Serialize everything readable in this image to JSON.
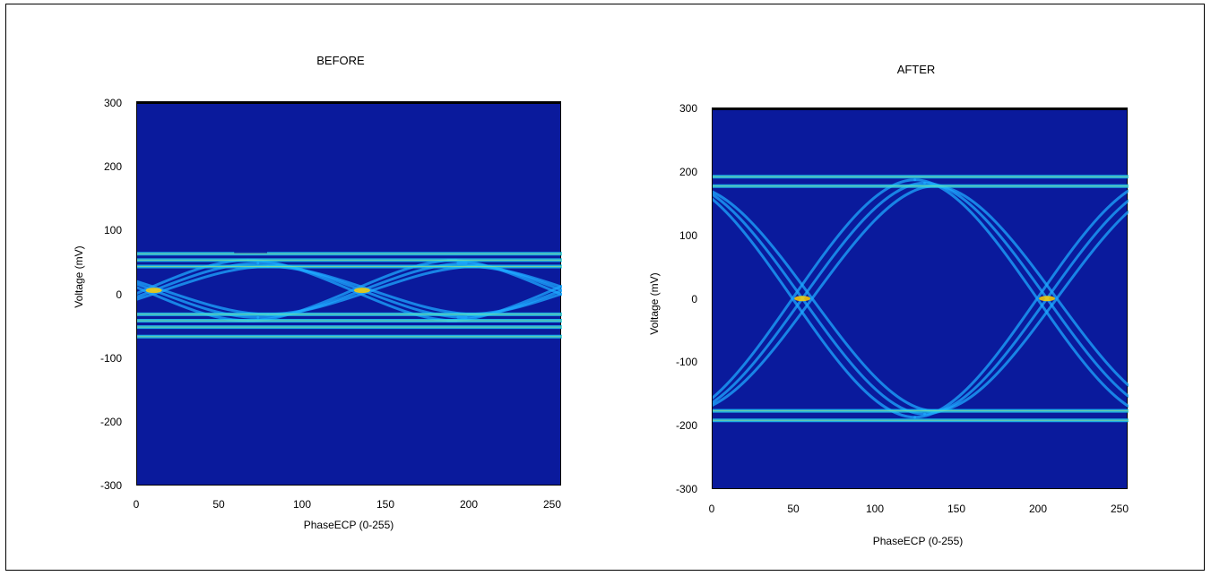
{
  "chart_data": [
    {
      "type": "heatmap",
      "title": "BEFORE",
      "xlabel": "PhaseECP (0-255)",
      "ylabel": "Voltage (mV)",
      "xlim": [
        0,
        255
      ],
      "ylim": [
        -300,
        300
      ],
      "xticks": [
        "0",
        "50",
        "100",
        "150",
        "200",
        "250"
      ],
      "yticks": [
        "300",
        "200",
        "100",
        "0",
        "-100",
        "-200",
        "-300"
      ],
      "levels": [
        55,
        -40
      ],
      "crossings": [
        10,
        135,
        255
      ],
      "gap_x": [
        55,
        78
      ],
      "traces": [
        {
          "kind": "flat",
          "y": 65
        },
        {
          "kind": "flat",
          "y": 55
        },
        {
          "kind": "flat",
          "y": 45
        },
        {
          "kind": "flat",
          "y": -30
        },
        {
          "kind": "flat",
          "y": -40
        },
        {
          "kind": "flat",
          "y": -50
        },
        {
          "kind": "flat",
          "y": -65
        }
      ]
    },
    {
      "type": "heatmap",
      "title": "AFTER",
      "xlabel": "PhaseECP (0-255)",
      "ylabel": "Voltage (mV)",
      "xlim": [
        0,
        255
      ],
      "ylim": [
        -300,
        300
      ],
      "xticks": [
        "0",
        "50",
        "100",
        "150",
        "200",
        "250"
      ],
      "yticks": [
        "300",
        "200",
        "100",
        "0",
        "-100",
        "-200",
        "-300"
      ],
      "levels": [
        190,
        -185
      ],
      "crossings": [
        55,
        205
      ],
      "gap_x": [
        55,
        78
      ],
      "traces": [
        {
          "kind": "flat",
          "y": 195
        },
        {
          "kind": "flat",
          "y": 180
        },
        {
          "kind": "flat",
          "y": -175
        },
        {
          "kind": "flat",
          "y": -190
        }
      ]
    }
  ]
}
